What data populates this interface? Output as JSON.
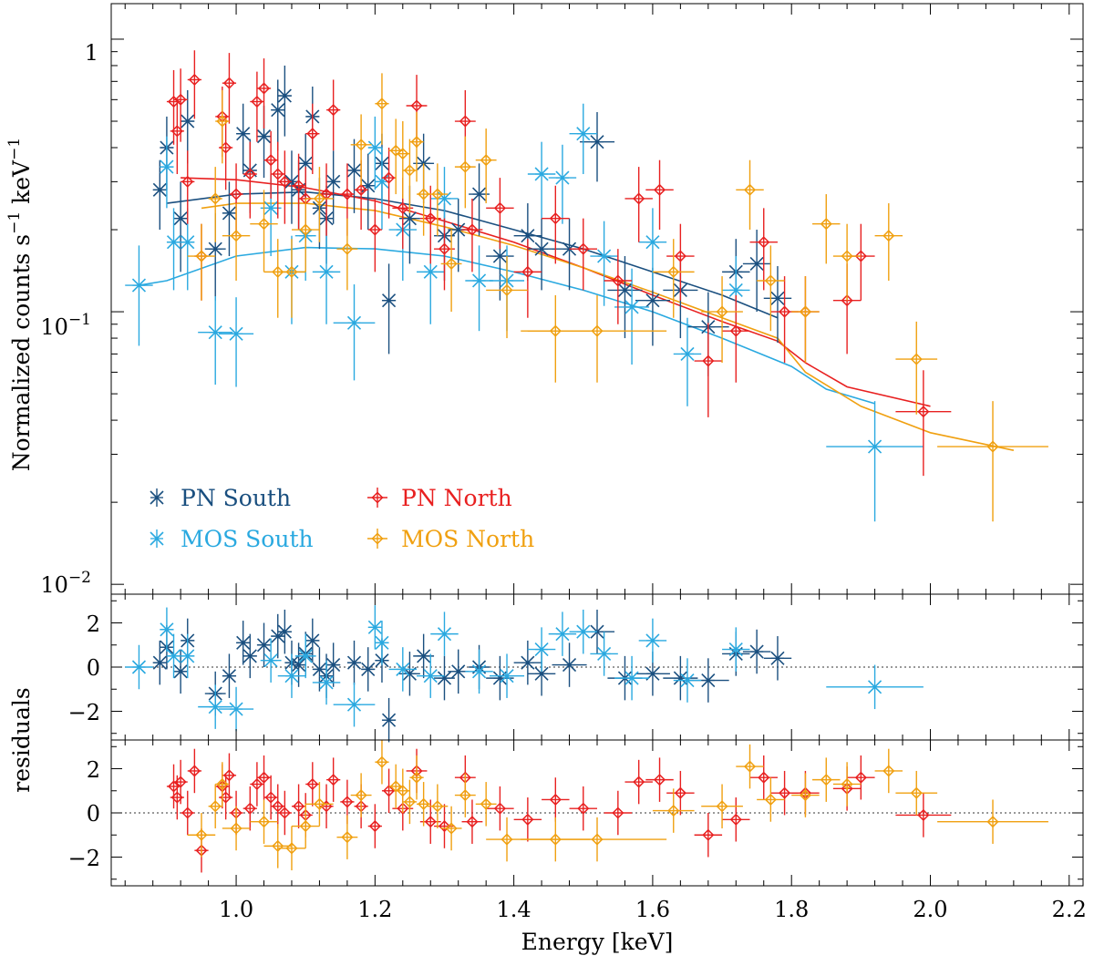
{
  "chart_data": {
    "type": "scatter",
    "title": "",
    "xlabel": "Energy [keV]",
    "ylabel": "Normalized counts s",
    "ylabel_unit_a": "−1",
    "ylabel_mid": " keV",
    "ylabel_unit_b": "−1",
    "residual_label": "residuals",
    "xlim": [
      0.82,
      2.22
    ],
    "ylim": [
      0.0092,
      1.35
    ],
    "residual_ylim": [
      -3.3,
      3.3
    ],
    "x_ticks": [
      1.0,
      1.2,
      1.4,
      1.6,
      1.8,
      2.0,
      2.2
    ],
    "x_tick_labels": [
      "1.0",
      "1.2",
      "1.4",
      "1.6",
      "1.8",
      "2.0",
      "2.2"
    ],
    "y_ticks": [
      1,
      0.1,
      0.01
    ],
    "y_tick_labels": {
      "t1": "1",
      "t2_base": "10",
      "t2_exp": "−1",
      "t3_base": "10",
      "t3_exp": "−2"
    },
    "residual_ticks": [
      2,
      0,
      -2
    ],
    "residual_tick_labels": [
      "2",
      "0",
      "−2"
    ],
    "colors": {
      "pn_south": "#1a4f7f",
      "mos_south": "#2aa9e0",
      "pn_north": "#e82020",
      "mos_north": "#f0a010"
    },
    "legend": {
      "pn_south": "PN South",
      "mos_south": "MOS South",
      "pn_north": "PN North",
      "mos_north": "MOS North"
    },
    "series": [
      {
        "name": "PN South",
        "key": "pn_south",
        "marker": "star",
        "x": [
          0.89,
          0.9,
          0.92,
          0.93,
          0.97,
          0.99,
          1.01,
          1.02,
          1.04,
          1.06,
          1.07,
          1.08,
          1.09,
          1.1,
          1.11,
          1.12,
          1.13,
          1.14,
          1.17,
          1.19,
          1.21,
          1.22,
          1.25,
          1.27,
          1.3,
          1.32,
          1.35,
          1.38,
          1.42,
          1.44,
          1.48,
          1.52,
          1.56,
          1.6,
          1.64,
          1.68,
          1.72,
          1.75,
          1.78
        ],
        "xerr": [
          0.01,
          0.01,
          0.01,
          0.01,
          0.015,
          0.01,
          0.01,
          0.01,
          0.01,
          0.01,
          0.01,
          0.01,
          0.01,
          0.01,
          0.01,
          0.01,
          0.01,
          0.01,
          0.01,
          0.01,
          0.01,
          0.01,
          0.015,
          0.015,
          0.015,
          0.015,
          0.015,
          0.02,
          0.02,
          0.02,
          0.025,
          0.025,
          0.025,
          0.025,
          0.025,
          0.03,
          0.02,
          0.02,
          0.02
        ],
        "y": [
          0.28,
          0.4,
          0.22,
          0.5,
          0.17,
          0.23,
          0.45,
          0.33,
          0.44,
          0.55,
          0.62,
          0.3,
          0.28,
          0.35,
          0.52,
          0.24,
          0.22,
          0.3,
          0.33,
          0.29,
          0.35,
          0.11,
          0.22,
          0.35,
          0.19,
          0.2,
          0.27,
          0.16,
          0.19,
          0.17,
          0.17,
          0.42,
          0.12,
          0.11,
          0.12,
          0.088,
          0.14,
          0.15,
          0.112
        ],
        "yerr": [
          0.08,
          0.12,
          0.08,
          0.15,
          0.06,
          0.07,
          0.13,
          0.1,
          0.13,
          0.16,
          0.18,
          0.09,
          0.08,
          0.1,
          0.15,
          0.07,
          0.07,
          0.09,
          0.1,
          0.09,
          0.1,
          0.04,
          0.07,
          0.1,
          0.06,
          0.06,
          0.08,
          0.05,
          0.06,
          0.05,
          0.05,
          0.12,
          0.04,
          0.035,
          0.04,
          0.03,
          0.045,
          0.05,
          0.035
        ],
        "residuals": [
          0.2,
          0.9,
          -0.2,
          1.2,
          -1.2,
          -0.4,
          1.1,
          0.5,
          1.0,
          1.4,
          1.6,
          0.2,
          0.1,
          0.6,
          1.2,
          -0.1,
          -0.4,
          0.1,
          0.2,
          -0.1,
          0.3,
          -2.4,
          -0.3,
          0.5,
          -0.5,
          -0.2,
          0.0,
          -0.5,
          0.2,
          -0.3,
          0.1,
          1.6,
          -0.5,
          -0.3,
          -0.5,
          -0.6,
          0.6,
          0.7,
          0.4
        ]
      },
      {
        "name": "MOS South",
        "key": "mos_south",
        "marker": "star",
        "x": [
          0.86,
          0.9,
          0.91,
          0.93,
          0.97,
          1.0,
          1.05,
          1.08,
          1.1,
          1.13,
          1.17,
          1.2,
          1.21,
          1.24,
          1.28,
          1.3,
          1.35,
          1.39,
          1.44,
          1.47,
          1.5,
          1.53,
          1.57,
          1.6,
          1.65,
          1.72,
          1.92
        ],
        "xerr": [
          0.02,
          0.01,
          0.01,
          0.01,
          0.025,
          0.025,
          0.015,
          0.02,
          0.015,
          0.02,
          0.03,
          0.01,
          0.01,
          0.02,
          0.02,
          0.02,
          0.02,
          0.025,
          0.02,
          0.02,
          0.02,
          0.02,
          0.025,
          0.02,
          0.02,
          0.02,
          0.07
        ],
        "y": [
          0.125,
          0.34,
          0.18,
          0.18,
          0.084,
          0.083,
          0.24,
          0.14,
          0.19,
          0.14,
          0.091,
          0.4,
          0.3,
          0.2,
          0.14,
          0.26,
          0.13,
          0.13,
          0.32,
          0.31,
          0.45,
          0.16,
          0.104,
          0.18,
          0.07,
          0.12,
          0.032
        ],
        "yerr": [
          0.05,
          0.1,
          0.06,
          0.06,
          0.03,
          0.03,
          0.08,
          0.05,
          0.06,
          0.05,
          0.035,
          0.12,
          0.1,
          0.07,
          0.05,
          0.08,
          0.045,
          0.045,
          0.1,
          0.1,
          0.13,
          0.055,
          0.04,
          0.06,
          0.025,
          0.04,
          0.015
        ],
        "residuals": [
          0.0,
          1.7,
          0.5,
          0.5,
          -1.8,
          -1.9,
          0.3,
          -0.4,
          0.5,
          -0.7,
          -1.7,
          1.8,
          1.1,
          -0.1,
          -0.4,
          1.5,
          -0.2,
          -0.4,
          0.8,
          1.5,
          1.6,
          0.6,
          -0.5,
          1.2,
          -0.6,
          0.8,
          -0.9
        ]
      },
      {
        "name": "PN North",
        "key": "pn_north",
        "marker": "diamond",
        "x": [
          0.91,
          0.915,
          0.92,
          0.93,
          0.94,
          0.95,
          0.98,
          0.985,
          0.99,
          1.0,
          1.02,
          1.03,
          1.04,
          1.05,
          1.06,
          1.07,
          1.09,
          1.1,
          1.11,
          1.13,
          1.14,
          1.16,
          1.18,
          1.2,
          1.22,
          1.24,
          1.26,
          1.28,
          1.3,
          1.33,
          1.34,
          1.38,
          1.42,
          1.46,
          1.5,
          1.55,
          1.58,
          1.61,
          1.64,
          1.68,
          1.72,
          1.76,
          1.79,
          1.82,
          1.88,
          1.9,
          1.99
        ],
        "xerr": [
          0.01,
          0.01,
          0.01,
          0.01,
          0.01,
          0.01,
          0.01,
          0.01,
          0.01,
          0.01,
          0.01,
          0.01,
          0.01,
          0.01,
          0.01,
          0.01,
          0.01,
          0.01,
          0.01,
          0.01,
          0.01,
          0.01,
          0.01,
          0.01,
          0.01,
          0.015,
          0.015,
          0.015,
          0.015,
          0.015,
          0.015,
          0.02,
          0.02,
          0.02,
          0.02,
          0.02,
          0.02,
          0.02,
          0.02,
          0.02,
          0.02,
          0.02,
          0.02,
          0.02,
          0.02,
          0.02,
          0.04
        ],
        "y": [
          0.59,
          0.46,
          0.6,
          0.3,
          0.71,
          0.16,
          0.52,
          0.4,
          0.69,
          0.27,
          0.32,
          0.59,
          0.66,
          0.36,
          0.32,
          0.3,
          0.29,
          0.26,
          0.45,
          0.27,
          0.55,
          0.27,
          0.28,
          0.2,
          0.31,
          0.24,
          0.57,
          0.22,
          0.17,
          0.5,
          0.2,
          0.24,
          0.14,
          0.22,
          0.17,
          0.13,
          0.26,
          0.28,
          0.16,
          0.066,
          0.085,
          0.18,
          0.1,
          0.1,
          0.11,
          0.16,
          0.043
        ],
        "yerr": [
          0.18,
          0.14,
          0.18,
          0.09,
          0.2,
          0.05,
          0.15,
          0.12,
          0.2,
          0.08,
          0.1,
          0.17,
          0.19,
          0.1,
          0.1,
          0.09,
          0.09,
          0.08,
          0.13,
          0.08,
          0.16,
          0.08,
          0.08,
          0.06,
          0.09,
          0.07,
          0.17,
          0.07,
          0.05,
          0.15,
          0.06,
          0.07,
          0.045,
          0.07,
          0.05,
          0.04,
          0.08,
          0.08,
          0.05,
          0.025,
          0.03,
          0.06,
          0.035,
          0.035,
          0.04,
          0.05,
          0.018
        ],
        "residuals": [
          1.2,
          0.7,
          1.4,
          0.0,
          1.9,
          -1.7,
          1.2,
          0.7,
          1.7,
          0.0,
          0.2,
          1.3,
          1.6,
          0.7,
          0.3,
          0.0,
          0.3,
          -0.1,
          1.3,
          0.3,
          1.5,
          0.5,
          0.3,
          -0.6,
          1.0,
          0.2,
          1.9,
          -0.4,
          -0.6,
          1.6,
          -0.4,
          0.2,
          -0.3,
          0.6,
          0.2,
          0.0,
          1.4,
          1.5,
          0.9,
          -1.0,
          -0.3,
          1.6,
          0.9,
          0.9,
          1.1,
          1.6,
          -0.1
        ]
      },
      {
        "name": "MOS North",
        "key": "mos_north",
        "marker": "diamond",
        "x": [
          0.95,
          0.97,
          0.98,
          1.0,
          1.04,
          1.06,
          1.08,
          1.1,
          1.12,
          1.16,
          1.18,
          1.21,
          1.23,
          1.24,
          1.25,
          1.26,
          1.27,
          1.29,
          1.31,
          1.33,
          1.36,
          1.39,
          1.46,
          1.52,
          1.63,
          1.7,
          1.74,
          1.77,
          1.82,
          1.85,
          1.88,
          1.94,
          1.98,
          2.09
        ],
        "xerr": [
          0.02,
          0.01,
          0.01,
          0.02,
          0.02,
          0.02,
          0.02,
          0.02,
          0.02,
          0.015,
          0.015,
          0.01,
          0.01,
          0.01,
          0.01,
          0.01,
          0.01,
          0.015,
          0.015,
          0.015,
          0.015,
          0.03,
          0.05,
          0.1,
          0.03,
          0.03,
          0.02,
          0.02,
          0.02,
          0.02,
          0.02,
          0.02,
          0.03,
          0.08
        ],
        "y": [
          0.16,
          0.26,
          0.5,
          0.19,
          0.21,
          0.14,
          0.14,
          0.2,
          0.26,
          0.17,
          0.41,
          0.58,
          0.39,
          0.38,
          0.33,
          0.42,
          0.27,
          0.27,
          0.15,
          0.34,
          0.36,
          0.12,
          0.085,
          0.085,
          0.14,
          0.1,
          0.28,
          0.13,
          0.1,
          0.21,
          0.16,
          0.19,
          0.067,
          0.032
        ],
        "yerr": [
          0.05,
          0.08,
          0.15,
          0.06,
          0.07,
          0.045,
          0.045,
          0.06,
          0.08,
          0.05,
          0.12,
          0.17,
          0.12,
          0.12,
          0.1,
          0.12,
          0.08,
          0.08,
          0.05,
          0.1,
          0.11,
          0.04,
          0.03,
          0.03,
          0.045,
          0.035,
          0.08,
          0.045,
          0.035,
          0.06,
          0.05,
          0.06,
          0.025,
          0.015
        ],
        "residuals": [
          -1.0,
          0.3,
          1.3,
          -0.7,
          -0.4,
          -1.5,
          -1.6,
          -0.6,
          0.4,
          -1.1,
          0.8,
          2.3,
          1.2,
          1.0,
          0.5,
          1.6,
          0.4,
          0.3,
          -0.7,
          0.8,
          0.4,
          -1.2,
          -1.2,
          -1.2,
          0.1,
          0.3,
          2.1,
          0.6,
          0.8,
          1.5,
          1.3,
          1.9,
          0.9,
          -0.4
        ]
      }
    ],
    "models": [
      {
        "key": "pn_south",
        "x": [
          0.9,
          1.0,
          1.1,
          1.2,
          1.3,
          1.4,
          1.5,
          1.6,
          1.7,
          1.78
        ],
        "y": [
          0.25,
          0.27,
          0.275,
          0.26,
          0.235,
          0.2,
          0.17,
          0.14,
          0.115,
          0.095
        ]
      },
      {
        "key": "mos_south",
        "x": [
          0.86,
          0.9,
          1.0,
          1.1,
          1.2,
          1.3,
          1.4,
          1.5,
          1.6,
          1.7,
          1.8,
          1.85,
          1.92
        ],
        "y": [
          0.125,
          0.13,
          0.16,
          0.172,
          0.17,
          0.16,
          0.14,
          0.12,
          0.1,
          0.08,
          0.063,
          0.052,
          0.046
        ]
      },
      {
        "key": "pn_north",
        "x": [
          0.92,
          1.0,
          1.1,
          1.2,
          1.3,
          1.4,
          1.5,
          1.6,
          1.7,
          1.78,
          1.82,
          1.88,
          2.0
        ],
        "y": [
          0.31,
          0.305,
          0.285,
          0.255,
          0.215,
          0.18,
          0.145,
          0.115,
          0.092,
          0.078,
          0.065,
          0.053,
          0.045
        ]
      },
      {
        "key": "mos_north",
        "x": [
          0.95,
          1.0,
          1.1,
          1.2,
          1.3,
          1.4,
          1.5,
          1.6,
          1.7,
          1.78,
          1.82,
          1.9,
          2.0,
          2.12
        ],
        "y": [
          0.24,
          0.25,
          0.25,
          0.235,
          0.205,
          0.175,
          0.145,
          0.118,
          0.095,
          0.08,
          0.06,
          0.045,
          0.036,
          0.031
        ]
      }
    ]
  }
}
